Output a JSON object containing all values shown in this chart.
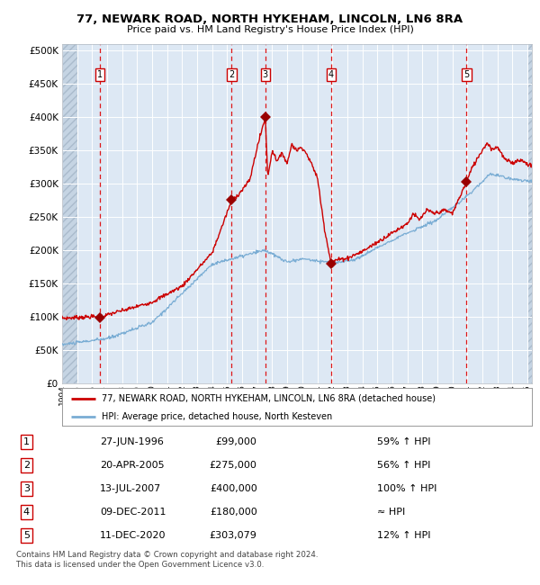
{
  "title": "77, NEWARK ROAD, NORTH HYKEHAM, LINCOLN, LN6 8RA",
  "subtitle": "Price paid vs. HM Land Registry's House Price Index (HPI)",
  "xlim": [
    1994.0,
    2025.3
  ],
  "ylim": [
    0,
    510000
  ],
  "yticks": [
    0,
    50000,
    100000,
    150000,
    200000,
    250000,
    300000,
    350000,
    400000,
    450000,
    500000
  ],
  "ytick_labels": [
    "£0",
    "£50K",
    "£100K",
    "£150K",
    "£200K",
    "£250K",
    "£300K",
    "£350K",
    "£400K",
    "£450K",
    "£500K"
  ],
  "bg_color": "#dde8f4",
  "hatch_color": "#c5d4e3",
  "grid_color": "#ffffff",
  "red_line_color": "#cc0000",
  "blue_line_color": "#7aadd4",
  "sale_marker_color": "#990000",
  "vline_color": "#dd0000",
  "number_box_color": "#cc0000",
  "sale_dates_x": [
    1996.49,
    2005.3,
    2007.54,
    2011.93,
    2020.95
  ],
  "sale_dates_prices": [
    99000,
    275000,
    400000,
    180000,
    303079
  ],
  "sale_numbers": [
    "1",
    "2",
    "3",
    "4",
    "5"
  ],
  "legend_red_label": "77, NEWARK ROAD, NORTH HYKEHAM, LINCOLN, LN6 8RA (detached house)",
  "legend_blue_label": "HPI: Average price, detached house, North Kesteven",
  "table_rows": [
    [
      "1",
      "27-JUN-1996",
      "£99,000",
      "59% ↑ HPI"
    ],
    [
      "2",
      "20-APR-2005",
      "£275,000",
      "56% ↑ HPI"
    ],
    [
      "3",
      "13-JUL-2007",
      "£400,000",
      "100% ↑ HPI"
    ],
    [
      "4",
      "09-DEC-2011",
      "£180,000",
      "≈ HPI"
    ],
    [
      "5",
      "11-DEC-2020",
      "£303,079",
      "12% ↑ HPI"
    ]
  ],
  "footer": "Contains HM Land Registry data © Crown copyright and database right 2024.\nThis data is licensed under the Open Government Licence v3.0.",
  "xtick_years": [
    1994,
    1995,
    1996,
    1997,
    1998,
    1999,
    2000,
    2001,
    2002,
    2003,
    2004,
    2005,
    2006,
    2007,
    2008,
    2009,
    2010,
    2011,
    2012,
    2013,
    2014,
    2015,
    2016,
    2017,
    2018,
    2019,
    2020,
    2021,
    2022,
    2023,
    2024,
    2025
  ],
  "hatch_left_end": 1995.0,
  "hatch_right_start": 2025.0
}
